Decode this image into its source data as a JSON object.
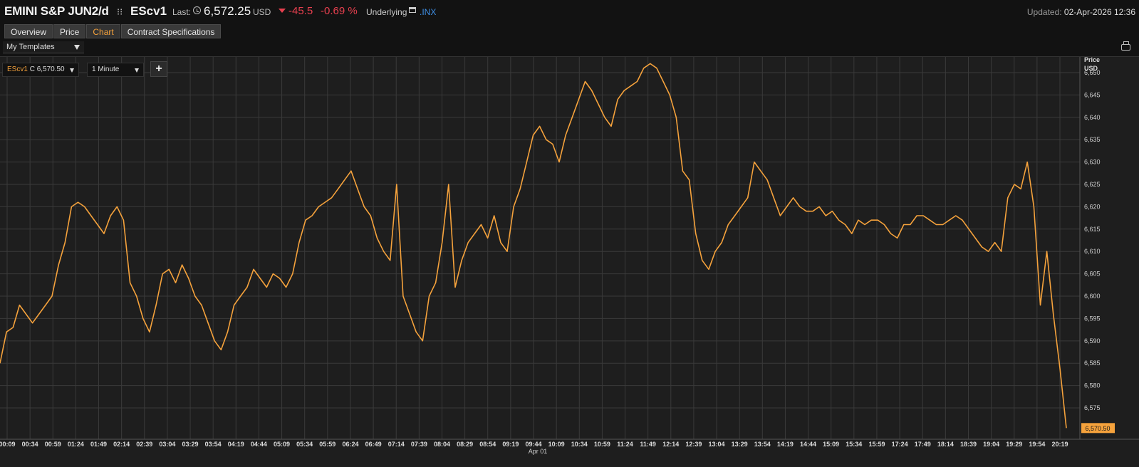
{
  "header": {
    "instrument_name": "EMINI S&P JUN2/d",
    "ric": "EScv1",
    "last_label": "Last:",
    "last_value": "6,572.25",
    "currency": "USD",
    "change": "-45.5",
    "change_pct": "-0.69 %",
    "underlying_label": "Underlying",
    "underlying_ric": ".INX",
    "updated_label": "Updated:",
    "updated_value": "02-Apr-2026 12:36",
    "change_color": "#e8404f",
    "link_color": "#3e8fe6"
  },
  "tabs": [
    {
      "label": "Overview",
      "active": false
    },
    {
      "label": "Price",
      "active": false
    },
    {
      "label": "Chart",
      "active": true
    },
    {
      "label": "Contract Specifications",
      "active": false
    }
  ],
  "templates": {
    "label": "My Templates"
  },
  "controls": {
    "series_ric": "EScv1",
    "series_value": "C 6,570.50",
    "interval": "1 Minute",
    "add_label": "+"
  },
  "chart_data": {
    "type": "line",
    "series": [
      {
        "color": "#f5a23c",
        "values": [
          6585,
          6592,
          6593,
          6598,
          6596,
          6594,
          6596,
          6598,
          6600,
          6607,
          6612,
          6620,
          6621,
          6620,
          6618,
          6616,
          6614,
          6618,
          6620,
          6617,
          6603,
          6600,
          6595,
          6592,
          6598,
          6605,
          6606,
          6603,
          6607,
          6604,
          6600,
          6598,
          6594,
          6590,
          6588,
          6592,
          6598,
          6600,
          6602,
          6606,
          6604,
          6602,
          6605,
          6604,
          6602,
          6605,
          6612,
          6617,
          6618,
          6620,
          6621,
          6622,
          6624,
          6626,
          6628,
          6624,
          6620,
          6618,
          6613,
          6610,
          6608,
          6625,
          6600,
          6596,
          6592,
          6590,
          6600,
          6603,
          6612,
          6625,
          6602,
          6608,
          6612,
          6614,
          6616,
          6613,
          6618,
          6612,
          6610,
          6620,
          6624,
          6630,
          6636,
          6638,
          6635,
          6634,
          6630,
          6636,
          6640,
          6644,
          6648,
          6646,
          6643,
          6640,
          6638,
          6644,
          6646,
          6647,
          6648,
          6651,
          6652,
          6651,
          6648,
          6645,
          6640,
          6628,
          6626,
          6614,
          6608,
          6606,
          6610,
          6612,
          6616,
          6618,
          6620,
          6622,
          6630,
          6628,
          6626,
          6622,
          6618,
          6620,
          6622,
          6620,
          6619,
          6619,
          6620,
          6618,
          6619,
          6617,
          6616,
          6614,
          6617,
          6616,
          6617,
          6617,
          6616,
          6614,
          6613,
          6616,
          6616,
          6618,
          6618,
          6617,
          6616,
          6616,
          6617,
          6618,
          6617,
          6615,
          6613,
          6611,
          6610,
          6612,
          6610,
          6622,
          6625,
          6624,
          6630,
          6620,
          6598,
          6610,
          6596,
          6584,
          6570.5
        ],
        "last_value_label": "6,570.50"
      }
    ],
    "x_tick_labels": [
      "00:09",
      "00:34",
      "00:59",
      "01:24",
      "01:49",
      "02:14",
      "02:39",
      "03:04",
      "03:29",
      "03:54",
      "04:19",
      "04:44",
      "05:09",
      "05:34",
      "05:59",
      "06:24",
      "06:49",
      "07:14",
      "07:39",
      "08:04",
      "08:29",
      "08:54",
      "09:19",
      "09:44",
      "10:09",
      "10:34",
      "10:59",
      "11:24",
      "11:49",
      "12:14",
      "12:39",
      "13:04",
      "13:29",
      "13:54",
      "14:19",
      "14:44",
      "15:09",
      "15:34",
      "15:59",
      "17:24",
      "17:49",
      "18:14",
      "18:39",
      "19:04",
      "19:29",
      "19:54",
      "20:19"
    ],
    "x_date_label": "Apr 01",
    "y_tick_labels": [
      "6,575",
      "6,580",
      "6,585",
      "6,590",
      "6,595",
      "6,600",
      "6,605",
      "6,610",
      "6,615",
      "6,620",
      "6,625",
      "6,630",
      "6,635",
      "6,640",
      "6,645",
      "6,650"
    ],
    "y_ticks": [
      6575,
      6580,
      6585,
      6590,
      6595,
      6600,
      6605,
      6610,
      6615,
      6620,
      6625,
      6630,
      6635,
      6640,
      6645,
      6650
    ],
    "ylabel": "Price",
    "yunit": "USD",
    "ylim": [
      6568,
      6653.5
    ],
    "grid": true,
    "last_value_color": "#f5a23c"
  }
}
